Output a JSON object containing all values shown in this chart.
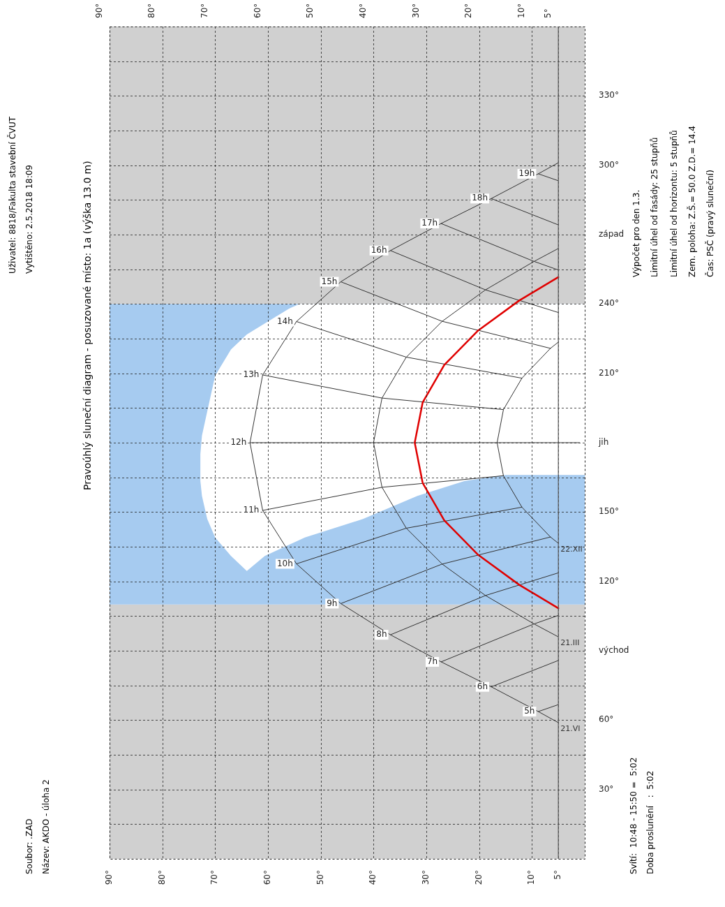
{
  "chart_data": {
    "type": "line",
    "title": "Pravoúhlý sluneční diagram - posuzované místo: 1a (výška 13.0 m)",
    "annotations": [
      "Soubor: .ZAD",
      "Název: AKDO - úloha 2",
      "Uživatel: 8818/Fakulta stavební ČVUT",
      "Vytištěno: 2.5.2018 18:09",
      "Svítí:  10:48 - 15:50 =  5:02",
      "Doba proslunění   :  5:02",
      "Výpočet pro den 1.3.",
      "Limitní úhel od fasády: 25 stupňů",
      "Limitní úhel od horizontu: 5 stupňů",
      "Zem. poloha: Z.Š.= 50.0 Z.D.= 14.4",
      "Čas: PSČ (pravý sluneční)",
      {
        "text": "5h",
        "x": 8.8,
        "y": 63.7
      },
      {
        "text": "6h",
        "x": 17.7,
        "y": 74.4
      },
      {
        "text": "7h",
        "x": 27.2,
        "y": 85.2
      },
      {
        "text": "8h",
        "x": 36.8,
        "y": 96.9
      },
      {
        "text": "9h",
        "x": 46.2,
        "y": 110.4
      },
      {
        "text": "10h",
        "x": 54.6,
        "y": 127.6
      },
      {
        "text": "11h",
        "x": 61,
        "y": 150.7
      },
      {
        "text": "12h",
        "x": 63.4,
        "y": 180
      },
      {
        "text": "13h",
        "x": 61,
        "y": 209.3
      },
      {
        "text": "14h",
        "x": 54.6,
        "y": 232.4
      },
      {
        "text": "15h",
        "x": 46.2,
        "y": 249.6
      },
      {
        "text": "16h",
        "x": 36.8,
        "y": 263.1
      },
      {
        "text": "17h",
        "x": 27.2,
        "y": 274.8
      },
      {
        "text": "18h",
        "x": 17.7,
        "y": 285.6
      },
      {
        "text": "19h",
        "x": 8.8,
        "y": 296.3
      }
    ],
    "xlim": [
      90,
      0
    ],
    "xticks": [
      {
        "value": 90,
        "label": "90°"
      },
      {
        "value": 80,
        "label": "80°"
      },
      {
        "value": 70,
        "label": "70°"
      },
      {
        "value": 60,
        "label": "60°"
      },
      {
        "value": 50,
        "label": "50°"
      },
      {
        "value": 40,
        "label": "40°"
      },
      {
        "value": 30,
        "label": "30°"
      },
      {
        "value": 20,
        "label": "20°"
      },
      {
        "value": 10,
        "label": "10°"
      },
      {
        "value": 5,
        "label": "5°"
      }
    ],
    "x2lim": [
      90,
      0
    ],
    "x2ticks": [
      {
        "value": 90,
        "label": "90°"
      },
      {
        "value": 80,
        "label": "80°"
      },
      {
        "value": 70,
        "label": "70°"
      },
      {
        "value": 60,
        "label": "60°"
      },
      {
        "value": 50,
        "label": "50°"
      },
      {
        "value": 40,
        "label": "40°"
      },
      {
        "value": 30,
        "label": "30°"
      },
      {
        "value": 20,
        "label": "20°"
      },
      {
        "value": 10,
        "label": "10°"
      },
      {
        "value": 5,
        "label": "5°"
      }
    ],
    "ylim": [
      0,
      360
    ],
    "yticks": [
      {
        "value": 15,
        "label": null
      },
      {
        "value": 30,
        "label": "30°"
      },
      {
        "value": 45,
        "label": null
      },
      {
        "value": 60,
        "label": "60°"
      },
      {
        "value": 75,
        "label": null
      },
      {
        "value": 90,
        "label": "východ"
      },
      {
        "value": 105,
        "label": null
      },
      {
        "value": 120,
        "label": "120°"
      },
      {
        "value": 135,
        "label": null
      },
      {
        "value": 150,
        "label": "150°"
      },
      {
        "value": 165,
        "label": null
      },
      {
        "value": 180,
        "label": "jih"
      },
      {
        "value": 195,
        "label": null
      },
      {
        "value": 210,
        "label": "210°"
      },
      {
        "value": 225,
        "label": null
      },
      {
        "value": 240,
        "label": "240°"
      },
      {
        "value": 255,
        "label": null
      },
      {
        "value": 270,
        "label": "západ"
      },
      {
        "value": 285,
        "label": null
      },
      {
        "value": 300,
        "label": "300°"
      },
      {
        "value": 315,
        "label": null
      },
      {
        "value": 330,
        "label": "330°"
      },
      {
        "value": 345,
        "label": null
      }
    ],
    "grid": true,
    "legend": false,
    "bands": [
      {
        "axis": "y",
        "from": 0,
        "to": 110,
        "color": "#d0d0d0"
      },
      {
        "axis": "y",
        "from": 110,
        "to": 240,
        "color": "#a6cbf0"
      },
      {
        "axis": "y",
        "from": 240,
        "to": 360,
        "color": "#d0d0d0"
      }
    ],
    "ref_lines": [
      {
        "axis": "x",
        "value": 5,
        "color": "#555555",
        "line_style": "solid"
      }
    ],
    "series": [
      {
        "type": "area",
        "color": "#ffffff",
        "x": [
          0,
          15,
          22.7,
          31.7,
          42,
          53,
          60.6,
          64,
          67,
          70,
          71.5,
          72.5,
          72.8,
          72.8,
          72.5,
          71.5,
          70,
          67,
          64,
          60.6,
          56,
          54,
          0
        ],
        "values": [
          166,
          166,
          163.5,
          157,
          147,
          139,
          131,
          124.5,
          131,
          139,
          147,
          157,
          163.5,
          175,
          183,
          193.5,
          209,
          220.3,
          226.8,
          231.6,
          238,
          240,
          240
        ]
      },
      {
        "name": "21.VI",
        "color": "#333333",
        "x": [
          5,
          8.8,
          17.7,
          27.2,
          36.8,
          46.2,
          54.6,
          61,
          63.4,
          61,
          54.6,
          46.2,
          36.8,
          27.2,
          17.7,
          8.8,
          5
        ],
        "values": [
          58.9,
          63.7,
          74.4,
          85.2,
          96.9,
          110.4,
          127.6,
          150.7,
          180,
          209.3,
          232.4,
          249.6,
          263.1,
          274.8,
          285.6,
          296.3,
          301.1
        ]
      },
      {
        "name": "21.III",
        "color": "#333333",
        "x": [
          5,
          9.6,
          18.8,
          27,
          33.8,
          38.4,
          40,
          38.4,
          33.8,
          27,
          18.8,
          9.6,
          5
        ],
        "values": [
          96,
          101.6,
          113.9,
          127.5,
          143,
          160.7,
          180,
          199.3,
          217,
          232.5,
          246.1,
          258.4,
          264
        ]
      },
      {
        "name": "22.XII",
        "color": "#333333",
        "x": [
          5,
          6.5,
          11.9,
          15.4,
          16.6,
          15.4,
          11.9,
          6.5,
          5
        ],
        "values": [
          136.5,
          139.2,
          152.1,
          165.7,
          180,
          194.3,
          207.9,
          220.8,
          223.5
        ]
      },
      {
        "color": "#e00000",
        "x": [
          5,
          12.4,
          20.3,
          26.6,
          30.7,
          32.2,
          30.7,
          26.6,
          20.3,
          12.4,
          5
        ],
        "values": [
          108.4,
          118.5,
          131.7,
          146.4,
          162.6,
          180,
          197.4,
          213.6,
          228.3,
          241.5,
          251.6
        ]
      },
      {
        "color": "#333333",
        "x": [
          8.8,
          5
        ],
        "values": [
          63.7,
          66.7
        ]
      },
      {
        "color": "#333333",
        "x": [
          17.7,
          5
        ],
        "values": [
          74.4,
          85.8
        ]
      },
      {
        "color": "#333333",
        "x": [
          27.2,
          9.6,
          5
        ],
        "values": [
          85.2,
          101.6,
          105.3
        ]
      },
      {
        "color": "#333333",
        "x": [
          36.8,
          18.8,
          5
        ],
        "values": [
          96.9,
          113.9,
          123.7
        ]
      },
      {
        "color": "#333333",
        "x": [
          46.2,
          27,
          6.5
        ],
        "values": [
          110.4,
          127.5,
          139.2
        ]
      },
      {
        "color": "#333333",
        "x": [
          54.6,
          33.8,
          11.9
        ],
        "values": [
          127.6,
          143,
          152.1
        ]
      },
      {
        "color": "#333333",
        "x": [
          61,
          38.4,
          15.4
        ],
        "values": [
          150.7,
          160.7,
          165.7
        ]
      },
      {
        "color": "#333333",
        "x": [
          63.4,
          40,
          16.6,
          1
        ],
        "values": [
          180,
          180,
          180,
          180
        ]
      },
      {
        "color": "#333333",
        "x": [
          61,
          38.4,
          15.4
        ],
        "values": [
          209.3,
          199.3,
          194.3
        ]
      },
      {
        "color": "#333333",
        "x": [
          54.6,
          33.8,
          11.9
        ],
        "values": [
          232.4,
          217,
          207.9
        ]
      },
      {
        "color": "#333333",
        "x": [
          46.2,
          27,
          6.5
        ],
        "values": [
          249.6,
          232.5,
          220.8
        ]
      },
      {
        "color": "#333333",
        "x": [
          36.8,
          18.8,
          5
        ],
        "values": [
          263.1,
          246.1,
          236.3
        ]
      },
      {
        "color": "#333333",
        "x": [
          27.2,
          9.6,
          5
        ],
        "values": [
          274.8,
          258.4,
          254.7
        ]
      },
      {
        "color": "#333333",
        "x": [
          17.7,
          5
        ],
        "values": [
          285.6,
          274.2
        ]
      },
      {
        "color": "#333333",
        "x": [
          8.8,
          5
        ],
        "values": [
          296.3,
          293.3
        ]
      }
    ]
  }
}
